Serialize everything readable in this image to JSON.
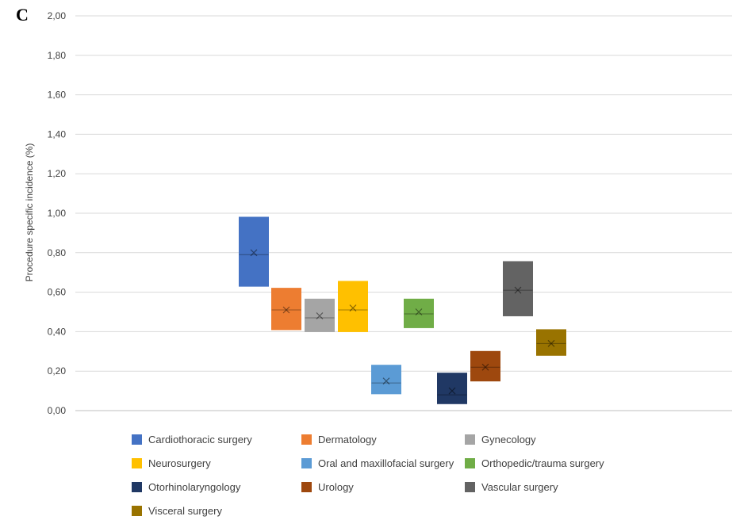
{
  "panel_label": "C",
  "chart_data": {
    "type": "box",
    "title": "",
    "xlabel": "",
    "ylabel": "Procedure specific incidence (%)",
    "ylim": [
      0,
      2
    ],
    "yticks": [
      "0,00",
      "0,20",
      "0,40",
      "0,60",
      "0,80",
      "1,00",
      "1,20",
      "1,40",
      "1,60",
      "1,80",
      "2,00"
    ],
    "grid": "horizontal",
    "legend_position": "bottom",
    "series": [
      {
        "name": "Cardiothoracic surgery",
        "color": "#4472C4",
        "low": 0.63,
        "high": 0.98,
        "median": 0.79,
        "mean": 0.8
      },
      {
        "name": "Dermatology",
        "color": "#ED7D31",
        "low": 0.41,
        "high": 0.62,
        "median": 0.51,
        "mean": 0.51
      },
      {
        "name": "Gynecology",
        "color": "#A5A5A5",
        "low": 0.4,
        "high": 0.565,
        "median": 0.47,
        "mean": 0.48
      },
      {
        "name": "Neurosurgery",
        "color": "#FFC000",
        "low": 0.4,
        "high": 0.655,
        "median": 0.51,
        "mean": 0.52
      },
      {
        "name": "Oral and maxillofacial surgery",
        "color": "#5B9BD5",
        "low": 0.085,
        "high": 0.23,
        "median": 0.14,
        "mean": 0.15
      },
      {
        "name": "Orthopedic/trauma surgery",
        "color": "#70AD47",
        "low": 0.42,
        "high": 0.565,
        "median": 0.49,
        "mean": 0.5
      },
      {
        "name": "Otorhinolaryngology",
        "color": "#203864",
        "low": 0.035,
        "high": 0.19,
        "median": 0.08,
        "mean": 0.1
      },
      {
        "name": "Urology",
        "color": "#9E480E",
        "low": 0.15,
        "high": 0.3,
        "median": 0.22,
        "mean": 0.22
      },
      {
        "name": "Vascular surgery",
        "color": "#636363",
        "low": 0.48,
        "high": 0.755,
        "median": 0.61,
        "mean": 0.61
      },
      {
        "name": "Visceral surgery",
        "color": "#997300",
        "low": 0.28,
        "high": 0.41,
        "median": 0.34,
        "mean": 0.34
      }
    ]
  }
}
